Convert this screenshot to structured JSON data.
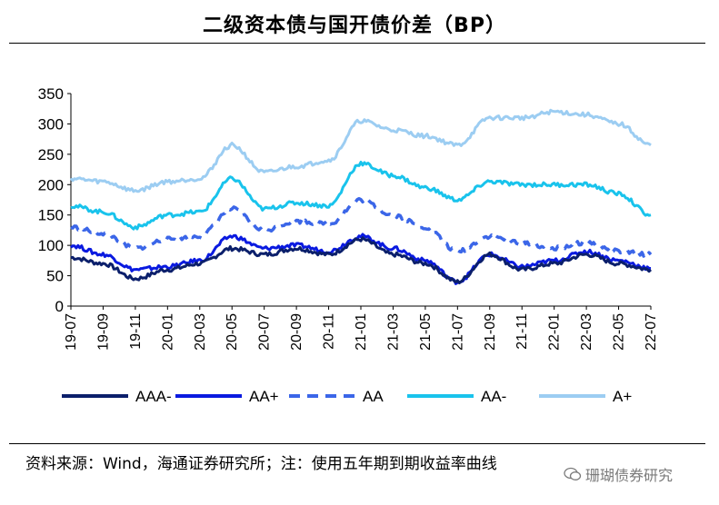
{
  "title": "二级资本债与国开债价差（BP）",
  "source": "资料来源：Wind，海通证券研究所；注：使用五年期到期收益率曲线",
  "watermark": {
    "icon": "wechat-icon",
    "text": "珊瑚债券研究"
  },
  "chart_data": {
    "type": "line",
    "title": "二级资本债与国开债价差（BP）",
    "xlabel": "",
    "ylabel": "",
    "ylim": [
      0,
      350
    ],
    "yticks": [
      0,
      50,
      100,
      150,
      200,
      250,
      300,
      350
    ],
    "grid": false,
    "legend": "bottom",
    "x": [
      "19-07",
      "19-09",
      "19-11",
      "20-01",
      "20-03",
      "20-05",
      "20-07",
      "20-09",
      "20-11",
      "21-01",
      "21-03",
      "21-05",
      "21-07",
      "21-09",
      "21-11",
      "22-01",
      "22-03",
      "22-05",
      "22-07"
    ],
    "series": [
      {
        "name": "AAA-",
        "color": "#0b1f6b",
        "style": "solid",
        "values": [
          80,
          70,
          45,
          60,
          70,
          95,
          85,
          95,
          85,
          110,
          85,
          70,
          40,
          85,
          60,
          70,
          85,
          70,
          60
        ]
      },
      {
        "name": "AA+",
        "color": "#0a1ae0",
        "style": "solid",
        "values": [
          100,
          85,
          60,
          65,
          75,
          115,
          95,
          100,
          90,
          115,
          95,
          75,
          40,
          85,
          65,
          75,
          90,
          75,
          62
        ]
      },
      {
        "name": "AA",
        "color": "#3b66e8",
        "style": "dash",
        "values": [
          130,
          120,
          95,
          110,
          115,
          160,
          125,
          140,
          135,
          175,
          150,
          130,
          90,
          115,
          105,
          95,
          105,
          90,
          85
        ]
      },
      {
        "name": "AA-",
        "color": "#19c3ec",
        "style": "solid",
        "values": [
          165,
          155,
          130,
          150,
          155,
          210,
          160,
          170,
          165,
          235,
          215,
          195,
          175,
          205,
          200,
          200,
          200,
          185,
          150
        ]
      },
      {
        "name": "A+",
        "color": "#9ccdf2",
        "style": "solid",
        "values": [
          210,
          205,
          190,
          205,
          210,
          265,
          220,
          230,
          240,
          305,
          290,
          280,
          265,
          310,
          310,
          320,
          315,
          300,
          265
        ]
      }
    ]
  }
}
